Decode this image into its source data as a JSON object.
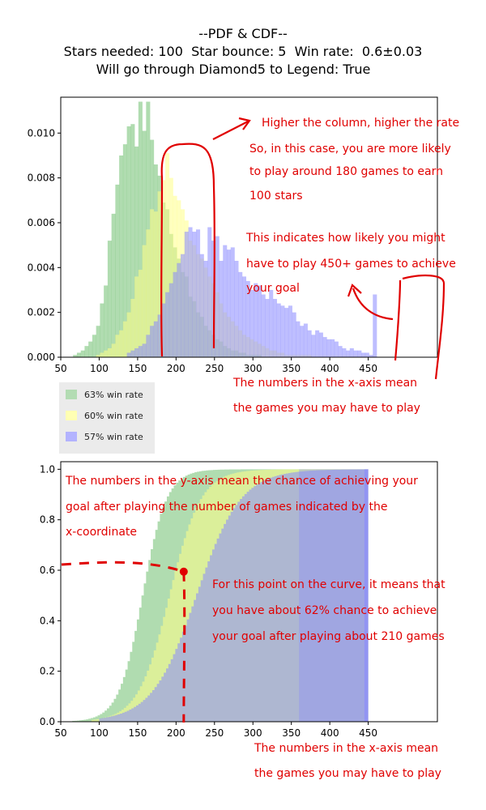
{
  "title": {
    "line1": "--PDF & CDF--",
    "line2": "Stars needed: 100  Star bounce: 5  Win rate:  0.6±0.03",
    "line3": "Will go through Diamond5 to Legend: True"
  },
  "legend": [
    {
      "label": "63% win rate",
      "color": "#6fbf6f"
    },
    {
      "label": "60% win rate",
      "color": "#ffff88"
    },
    {
      "label": "57% win rate",
      "color": "#8888ff"
    }
  ],
  "annotations": {
    "pdf": [
      {
        "id": "higher-column",
        "lines": [
          "Higher the column, higher the rate"
        ]
      },
      {
        "id": "likely-180",
        "lines": [
          "So, in this case, you are more likely",
          "to play around 180 games to earn",
          "100 stars"
        ]
      },
      {
        "id": "how-likely-450",
        "lines": [
          "This indicates how likely you might",
          "have to play 450+ games to achieve",
          "your goal"
        ]
      },
      {
        "id": "x-axis-note-1",
        "lines": [
          "The numbers in the x-axis mean",
          "the games you may have to play"
        ]
      }
    ],
    "cdf": [
      {
        "id": "y-axis-note",
        "lines": [
          "The numbers in the y-axis mean the chance of achieving your",
          "goal after playing the number of games indicated by the",
          "x-coordinate"
        ]
      },
      {
        "id": "point-note",
        "lines": [
          "For this point on the curve, it means that",
          "you have about 62% chance to achieve",
          "your goal after playing about 210 games"
        ]
      },
      {
        "id": "x-axis-note-2",
        "lines": [
          "The numbers in the x-axis mean",
          "the games you may have to play"
        ]
      }
    ]
  },
  "chart_data": [
    {
      "type": "bar",
      "subtype": "histogram",
      "title": "",
      "xlabel": "",
      "ylabel": "",
      "xlim": [
        50,
        540
      ],
      "ylim": [
        0,
        0.0116
      ],
      "xticks": [
        50,
        100,
        150,
        200,
        250,
        300,
        350,
        400,
        450
      ],
      "yticks": [
        0.0,
        0.002,
        0.004,
        0.006,
        0.008,
        0.01
      ],
      "ytick_labels": [
        "0.000",
        "0.002",
        "0.004",
        "0.006",
        "0.008",
        "0.010"
      ],
      "legend_position": "below-left",
      "series": [
        {
          "name": "63% win rate",
          "color": "#6fbf6f",
          "x_start": 66,
          "bin_width": 5,
          "values": [
            0.0001,
            0.0002,
            0.0003,
            0.0005,
            0.0007,
            0.001,
            0.0014,
            0.0024,
            0.0032,
            0.0052,
            0.0064,
            0.0077,
            0.009,
            0.0095,
            0.0103,
            0.0104,
            0.0094,
            0.0114,
            0.0101,
            0.0114,
            0.0097,
            0.0086,
            0.0081,
            0.0069,
            0.0066,
            0.0055,
            0.0049,
            0.0044,
            0.0038,
            0.0036,
            0.0027,
            0.0025,
            0.002,
            0.0018,
            0.0014,
            0.0012,
            0.001,
            0.0008,
            0.0007,
            0.0005,
            0.0004,
            0.0003,
            0.0003,
            0.0002,
            0.0002,
            0.0001,
            0.0001,
            0.0001,
            0.0001
          ]
        },
        {
          "name": "60% win rate",
          "color": "#ffff88",
          "x_start": 96,
          "bin_width": 5,
          "values": [
            0.0001,
            0.0002,
            0.0003,
            0.0004,
            0.0006,
            0.001,
            0.0012,
            0.0016,
            0.002,
            0.0026,
            0.0036,
            0.0039,
            0.005,
            0.0057,
            0.0066,
            0.0065,
            0.0074,
            0.0079,
            0.0091,
            0.008,
            0.0072,
            0.007,
            0.0066,
            0.0061,
            0.0052,
            0.005,
            0.0046,
            0.0044,
            0.004,
            0.0036,
            0.0033,
            0.0029,
            0.0024,
            0.002,
            0.0018,
            0.0016,
            0.0014,
            0.0012,
            0.001,
            0.0009,
            0.0008,
            0.0007,
            0.0006,
            0.0005,
            0.0004,
            0.0003,
            0.0003,
            0.0002,
            0.0002,
            0.0001,
            0.0001,
            0.0001,
            0.0001,
            0.0001,
            0.0001,
            0.0001
          ]
        },
        {
          "name": "57% win rate",
          "color": "#8888ff",
          "x_start": 136,
          "bin_width": 5,
          "values": [
            0.0002,
            0.0003,
            0.0004,
            0.0005,
            0.0006,
            0.001,
            0.0014,
            0.0016,
            0.0019,
            0.0024,
            0.0029,
            0.0033,
            0.0038,
            0.0042,
            0.0046,
            0.0056,
            0.0058,
            0.0056,
            0.0057,
            0.0046,
            0.0043,
            0.0058,
            0.0052,
            0.0054,
            0.0043,
            0.005,
            0.0048,
            0.0049,
            0.0043,
            0.0038,
            0.0036,
            0.0034,
            0.003,
            0.0033,
            0.0032,
            0.0028,
            0.0026,
            0.003,
            0.0026,
            0.0024,
            0.0023,
            0.0022,
            0.0023,
            0.002,
            0.0016,
            0.0014,
            0.0015,
            0.0012,
            0.001,
            0.0012,
            0.0011,
            0.0009,
            0.0008,
            0.0008,
            0.0007,
            0.0005,
            0.0004,
            0.0003,
            0.0004,
            0.0003,
            0.0003,
            0.0002,
            0.0002,
            0.0001,
            0.0028
          ]
        }
      ]
    },
    {
      "type": "area",
      "subtype": "cumulative-histogram",
      "title": "",
      "xlabel": "",
      "ylabel": "",
      "xlim": [
        50,
        540
      ],
      "ylim": [
        0,
        1.03
      ],
      "xticks": [
        50,
        100,
        150,
        200,
        250,
        300,
        350,
        400,
        450
      ],
      "yticks": [
        0.0,
        0.2,
        0.4,
        0.6,
        0.8,
        1.0
      ],
      "ytick_labels": [
        "0.0",
        "0.2",
        "0.4",
        "0.6",
        "0.8",
        "1.0"
      ],
      "series": [
        {
          "name": "63% win rate",
          "color": "#6fbf6f",
          "median": 155,
          "spread": 26,
          "start": 65,
          "end": 450
        },
        {
          "name": "60% win rate",
          "color": "#ffff88",
          "median": 190,
          "spread": 34,
          "start": 90,
          "end": 450
        },
        {
          "name": "57% win rate",
          "color": "#8888ff",
          "median": 225,
          "spread": 48,
          "start": 100,
          "end": 450
        }
      ],
      "highlight_point": {
        "x": 210,
        "y": 0.62
      }
    }
  ]
}
